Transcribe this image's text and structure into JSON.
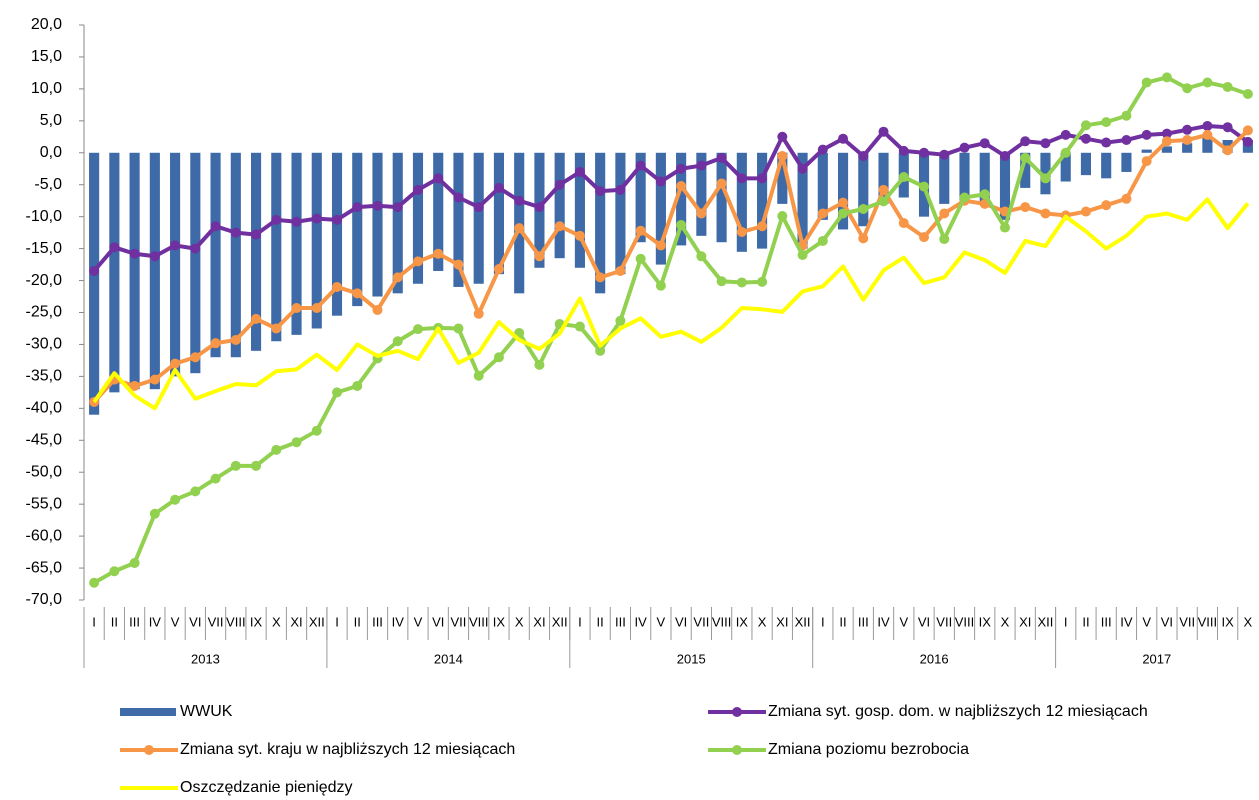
{
  "chart_data": {
    "type": "combo",
    "categories": [
      "I",
      "II",
      "III",
      "IV",
      "V",
      "VI",
      "VII",
      "VIII",
      "IX",
      "X",
      "XI",
      "XII",
      "I",
      "II",
      "III",
      "IV",
      "V",
      "VI",
      "VII",
      "VIII",
      "IX",
      "X",
      "XI",
      "XII",
      "I",
      "II",
      "III",
      "IV",
      "V",
      "VI",
      "VII",
      "VIII",
      "IX",
      "X",
      "XI",
      "XII",
      "I",
      "II",
      "III",
      "IV",
      "V",
      "VI",
      "VII",
      "VIII",
      "IX",
      "X",
      "XI",
      "XII",
      "I",
      "II",
      "III",
      "IV",
      "V",
      "VI",
      "VII",
      "VIII",
      "IX",
      "X"
    ],
    "year_groups": [
      {
        "label": "2013",
        "count": 12
      },
      {
        "label": "2014",
        "count": 12
      },
      {
        "label": "2015",
        "count": 12
      },
      {
        "label": "2016",
        "count": 12
      },
      {
        "label": "2017",
        "count": 10
      }
    ],
    "ylim": [
      -70,
      20
    ],
    "yticks": [
      {
        "value": -70,
        "label": "-70,0"
      },
      {
        "value": -65,
        "label": "-65,0"
      },
      {
        "value": -60,
        "label": "-60,0"
      },
      {
        "value": -55,
        "label": "-55,0"
      },
      {
        "value": -50,
        "label": "-50,0"
      },
      {
        "value": -45,
        "label": "-45,0"
      },
      {
        "value": -40,
        "label": "-40,0"
      },
      {
        "value": -35,
        "label": "-35,0"
      },
      {
        "value": -30,
        "label": "-30,0"
      },
      {
        "value": -25,
        "label": "-25,0"
      },
      {
        "value": -20,
        "label": "-20,0"
      },
      {
        "value": -15,
        "label": "-15,0"
      },
      {
        "value": -10,
        "label": "-10,0"
      },
      {
        "value": -5,
        "label": "-5,0"
      },
      {
        "value": 0,
        "label": "0,0"
      },
      {
        "value": 5,
        "label": "5,0"
      },
      {
        "value": 10,
        "label": "10,0"
      },
      {
        "value": 15,
        "label": "15,0"
      },
      {
        "value": 20,
        "label": "20,0"
      }
    ],
    "series": [
      {
        "name": "WWUK",
        "type": "bar",
        "color": "#3e6aa8",
        "values": [
          -41,
          -37.5,
          -37,
          -37,
          -35,
          -34.5,
          -32,
          -32,
          -31,
          -29.5,
          -28.5,
          -27.5,
          -25.5,
          -24,
          -22.5,
          -22,
          -20.5,
          -18.5,
          -21,
          -20.5,
          -19,
          -22,
          -18,
          -16.5,
          -18,
          -22,
          -19,
          -14,
          -17.5,
          -14.5,
          -13,
          -14,
          -15.5,
          -15,
          -8,
          -15,
          -10.5,
          -12,
          -11.5,
          -8,
          -7,
          -10,
          -8,
          -7.5,
          -8,
          -10.5,
          -5.5,
          -6.5,
          -4.5,
          -3.5,
          -4,
          -3,
          0.5,
          1,
          1.5,
          2.5,
          2,
          2
        ]
      },
      {
        "name": "Zmiana syt. gosp. dom. w najbliższych 12 miesiącach",
        "type": "line",
        "markers": true,
        "color": "#7030a0",
        "values": [
          -18.5,
          -14.8,
          -15.8,
          -16.2,
          -14.5,
          -15,
          -11.5,
          -12.5,
          -12.8,
          -10.5,
          -10.8,
          -10.3,
          -10.5,
          -8.5,
          -8.3,
          -8.5,
          -5.8,
          -4,
          -7,
          -8.5,
          -5.5,
          -7.5,
          -8.5,
          -5,
          -3,
          -6,
          -5.8,
          -2,
          -4.5,
          -2.5,
          -2,
          -0.8,
          -4,
          -4,
          2.5,
          -2.5,
          0.5,
          2.2,
          -0.5,
          3.3,
          0.3,
          0,
          -0.3,
          0.8,
          1.5,
          -0.5,
          1.8,
          1.5,
          2.8,
          2.2,
          1.6,
          2,
          2.8,
          3,
          3.6,
          4.2,
          4,
          1.7
        ]
      },
      {
        "name": "Zmiana syt. kraju w najbliższych 12 miesiącach",
        "type": "line",
        "markers": true,
        "color": "#f79646",
        "values": [
          -39,
          -35.5,
          -36.5,
          -35.5,
          -33,
          -32,
          -29.8,
          -29.3,
          -26,
          -27.5,
          -24.3,
          -24.3,
          -21,
          -22,
          -24.6,
          -19.5,
          -17,
          -15.8,
          -17.5,
          -25.2,
          -18.2,
          -11.8,
          -16.2,
          -11.5,
          -13,
          -19.5,
          -18.5,
          -12.2,
          -14.5,
          -5.2,
          -9.5,
          -4.8,
          -12.4,
          -11.5,
          -0.5,
          -14.5,
          -9.5,
          -7.8,
          -13.4,
          -5.8,
          -11,
          -13.2,
          -9.5,
          -7.5,
          -8,
          -9.2,
          -8.5,
          -9.5,
          -9.8,
          -9.2,
          -8.2,
          -7.2,
          -1.3,
          1.8,
          2,
          2.8,
          0.4,
          3.5
        ]
      },
      {
        "name": "Zmiana poziomu bezrobocia",
        "type": "line",
        "markers": true,
        "color": "#92d050",
        "values": [
          -67.3,
          -65.5,
          -64.2,
          -56.5,
          -54.3,
          -53,
          -51,
          -49,
          -49,
          -46.5,
          -45.3,
          -43.5,
          -37.5,
          -36.5,
          -32.2,
          -29.5,
          -27.6,
          -27.4,
          -27.5,
          -34.9,
          -32,
          -28.2,
          -33.2,
          -26.8,
          -27.2,
          -31,
          -26.3,
          -16.6,
          -20.8,
          -11.3,
          -16.2,
          -20.1,
          -20.3,
          -20.2,
          -9.9,
          -16,
          -13.8,
          -9.5,
          -8.8,
          -7.6,
          -3.8,
          -5.3,
          -13.5,
          -7,
          -6.5,
          -11.7,
          -0.8,
          -4,
          0,
          4.3,
          4.8,
          5.8,
          11,
          11.8,
          10.1,
          11,
          10.3,
          9.2
        ]
      },
      {
        "name": "Oszczędzanie pieniędzy",
        "type": "line",
        "markers": false,
        "color": "#ffff00",
        "values": [
          -39,
          -34.5,
          -38,
          -40,
          -34,
          -38.5,
          -37.3,
          -36.2,
          -36.4,
          -34.2,
          -33.9,
          -31.6,
          -34,
          -30,
          -31.8,
          -31,
          -32.3,
          -27.5,
          -32.9,
          -31.3,
          -26.5,
          -29.3,
          -30.7,
          -28.3,
          -22.8,
          -30.2,
          -27.5,
          -25.9,
          -28.8,
          -28,
          -29.6,
          -27.4,
          -24.3,
          -24.5,
          -24.9,
          -21.7,
          -20.9,
          -17.8,
          -23,
          -18.4,
          -16.4,
          -20.4,
          -19.5,
          -15.6,
          -16.8,
          -18.8,
          -13.8,
          -14.6,
          -10,
          -12.3,
          -15,
          -13,
          -10,
          -9.5,
          -10.5,
          -7.3,
          -11.8,
          -7.9
        ]
      }
    ]
  }
}
